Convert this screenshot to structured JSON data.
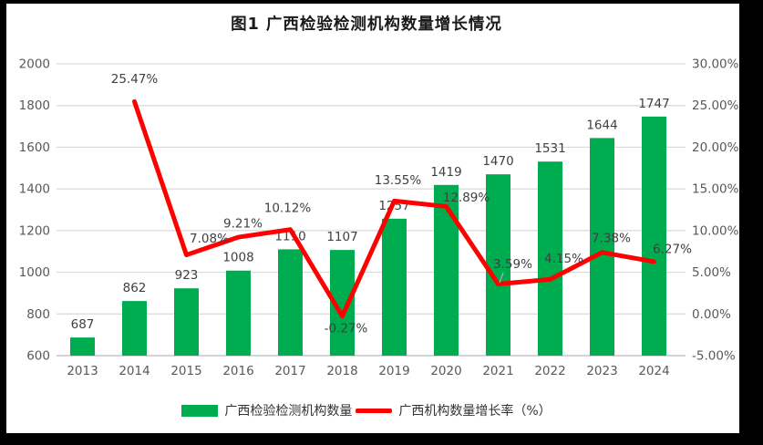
{
  "title": "图1 广西检验检测机构数量增长情况",
  "colors": {
    "bar_green": "#00AC50",
    "line_red": "#FF0000",
    "gridline": "#D9D9D9",
    "axis_line": "#BFBFBF",
    "axis_text": "#595959",
    "data_label_text": "#404040",
    "frame": "#000000",
    "background": "#FFFFFF",
    "leader_line": "#A6A6A6"
  },
  "chart_data": {
    "type": "bar",
    "subtype": "combo-bar-line",
    "title": "图1 广西检验检测机构数量增长情况",
    "categories": [
      "2013",
      "2014",
      "2015",
      "2016",
      "2017",
      "2018",
      "2019",
      "2020",
      "2021",
      "2022",
      "2023",
      "2024"
    ],
    "series": [
      {
        "name": "广西检验检测机构数量",
        "type": "bar",
        "axis": "left",
        "color": "#00AC50",
        "values": [
          687,
          862,
          923,
          1008,
          1110,
          1107,
          1257,
          1419,
          1470,
          1531,
          1644,
          1747
        ],
        "labels": [
          "687",
          "862",
          "923",
          "1008",
          "1110",
          "1107",
          "1257",
          "1419",
          "1470",
          "1531",
          "1644",
          "1747"
        ]
      },
      {
        "name": "广西机构数量增长率（%）",
        "type": "line",
        "axis": "right",
        "color": "#FF0000",
        "values": [
          null,
          25.47,
          7.08,
          9.21,
          10.12,
          -0.27,
          13.55,
          12.89,
          3.59,
          4.15,
          7.38,
          6.27
        ],
        "labels": [
          null,
          "25.47%",
          "7.08%",
          "9.21%",
          "10.12%",
          "-0.27%",
          "13.55%",
          "12.89%",
          "3.59%",
          "4.15%",
          "7.38%",
          "6.27%"
        ]
      }
    ],
    "left_axis": {
      "min": 600,
      "max": 2000,
      "step": 200,
      "ticks": [
        "2000",
        "1800",
        "1600",
        "1400",
        "1200",
        "1000",
        "800",
        "600"
      ]
    },
    "right_axis": {
      "min": -5,
      "max": 30,
      "step": 5,
      "ticks": [
        "30.00%",
        "25.00%",
        "20.00%",
        "15.00%",
        "10.00%",
        "5.00%",
        "0.00%",
        "-5.00%"
      ]
    },
    "grid": true,
    "legend_position": "bottom"
  },
  "legend": {
    "items": [
      {
        "label": "广西检验检测机构数量",
        "color": "#00AC50",
        "marker": "bar"
      },
      {
        "label": "广西机构数量增长率（%）",
        "color": "#FF0000",
        "marker": "line"
      }
    ]
  }
}
